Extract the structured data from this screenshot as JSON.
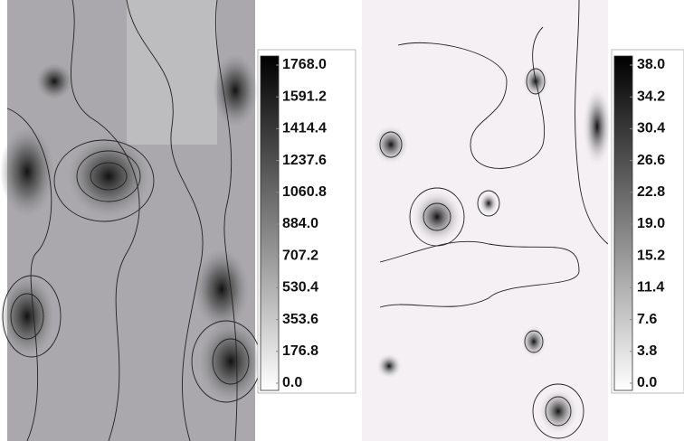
{
  "chart_data": [
    {
      "type": "contour",
      "colors": [
        "#ffffff",
        "#000000"
      ],
      "clim": [
        0,
        1768
      ],
      "cticks": [
        {
          "value": 1768,
          "label": "1768.0"
        },
        1591.2,
        1414.4,
        1237.6,
        1060.8,
        {
          "value": 884,
          "label": "884.0"
        },
        707.2,
        530.4,
        353.6,
        176.8,
        {
          "value": 0,
          "label": "0.0"
        }
      ]
    },
    {
      "type": "contour",
      "colors": [
        "#ffffff",
        "#000000"
      ],
      "clim": [
        0,
        38
      ],
      "cticks": [
        {
          "value": 38,
          "label": "38.0"
        },
        34.2,
        30.4,
        26.6,
        22.8,
        {
          "value": 19,
          "label": "19.0"
        },
        15.2,
        11.4,
        7.6,
        3.8,
        {
          "value": 0,
          "label": "0.0"
        }
      ]
    }
  ]
}
